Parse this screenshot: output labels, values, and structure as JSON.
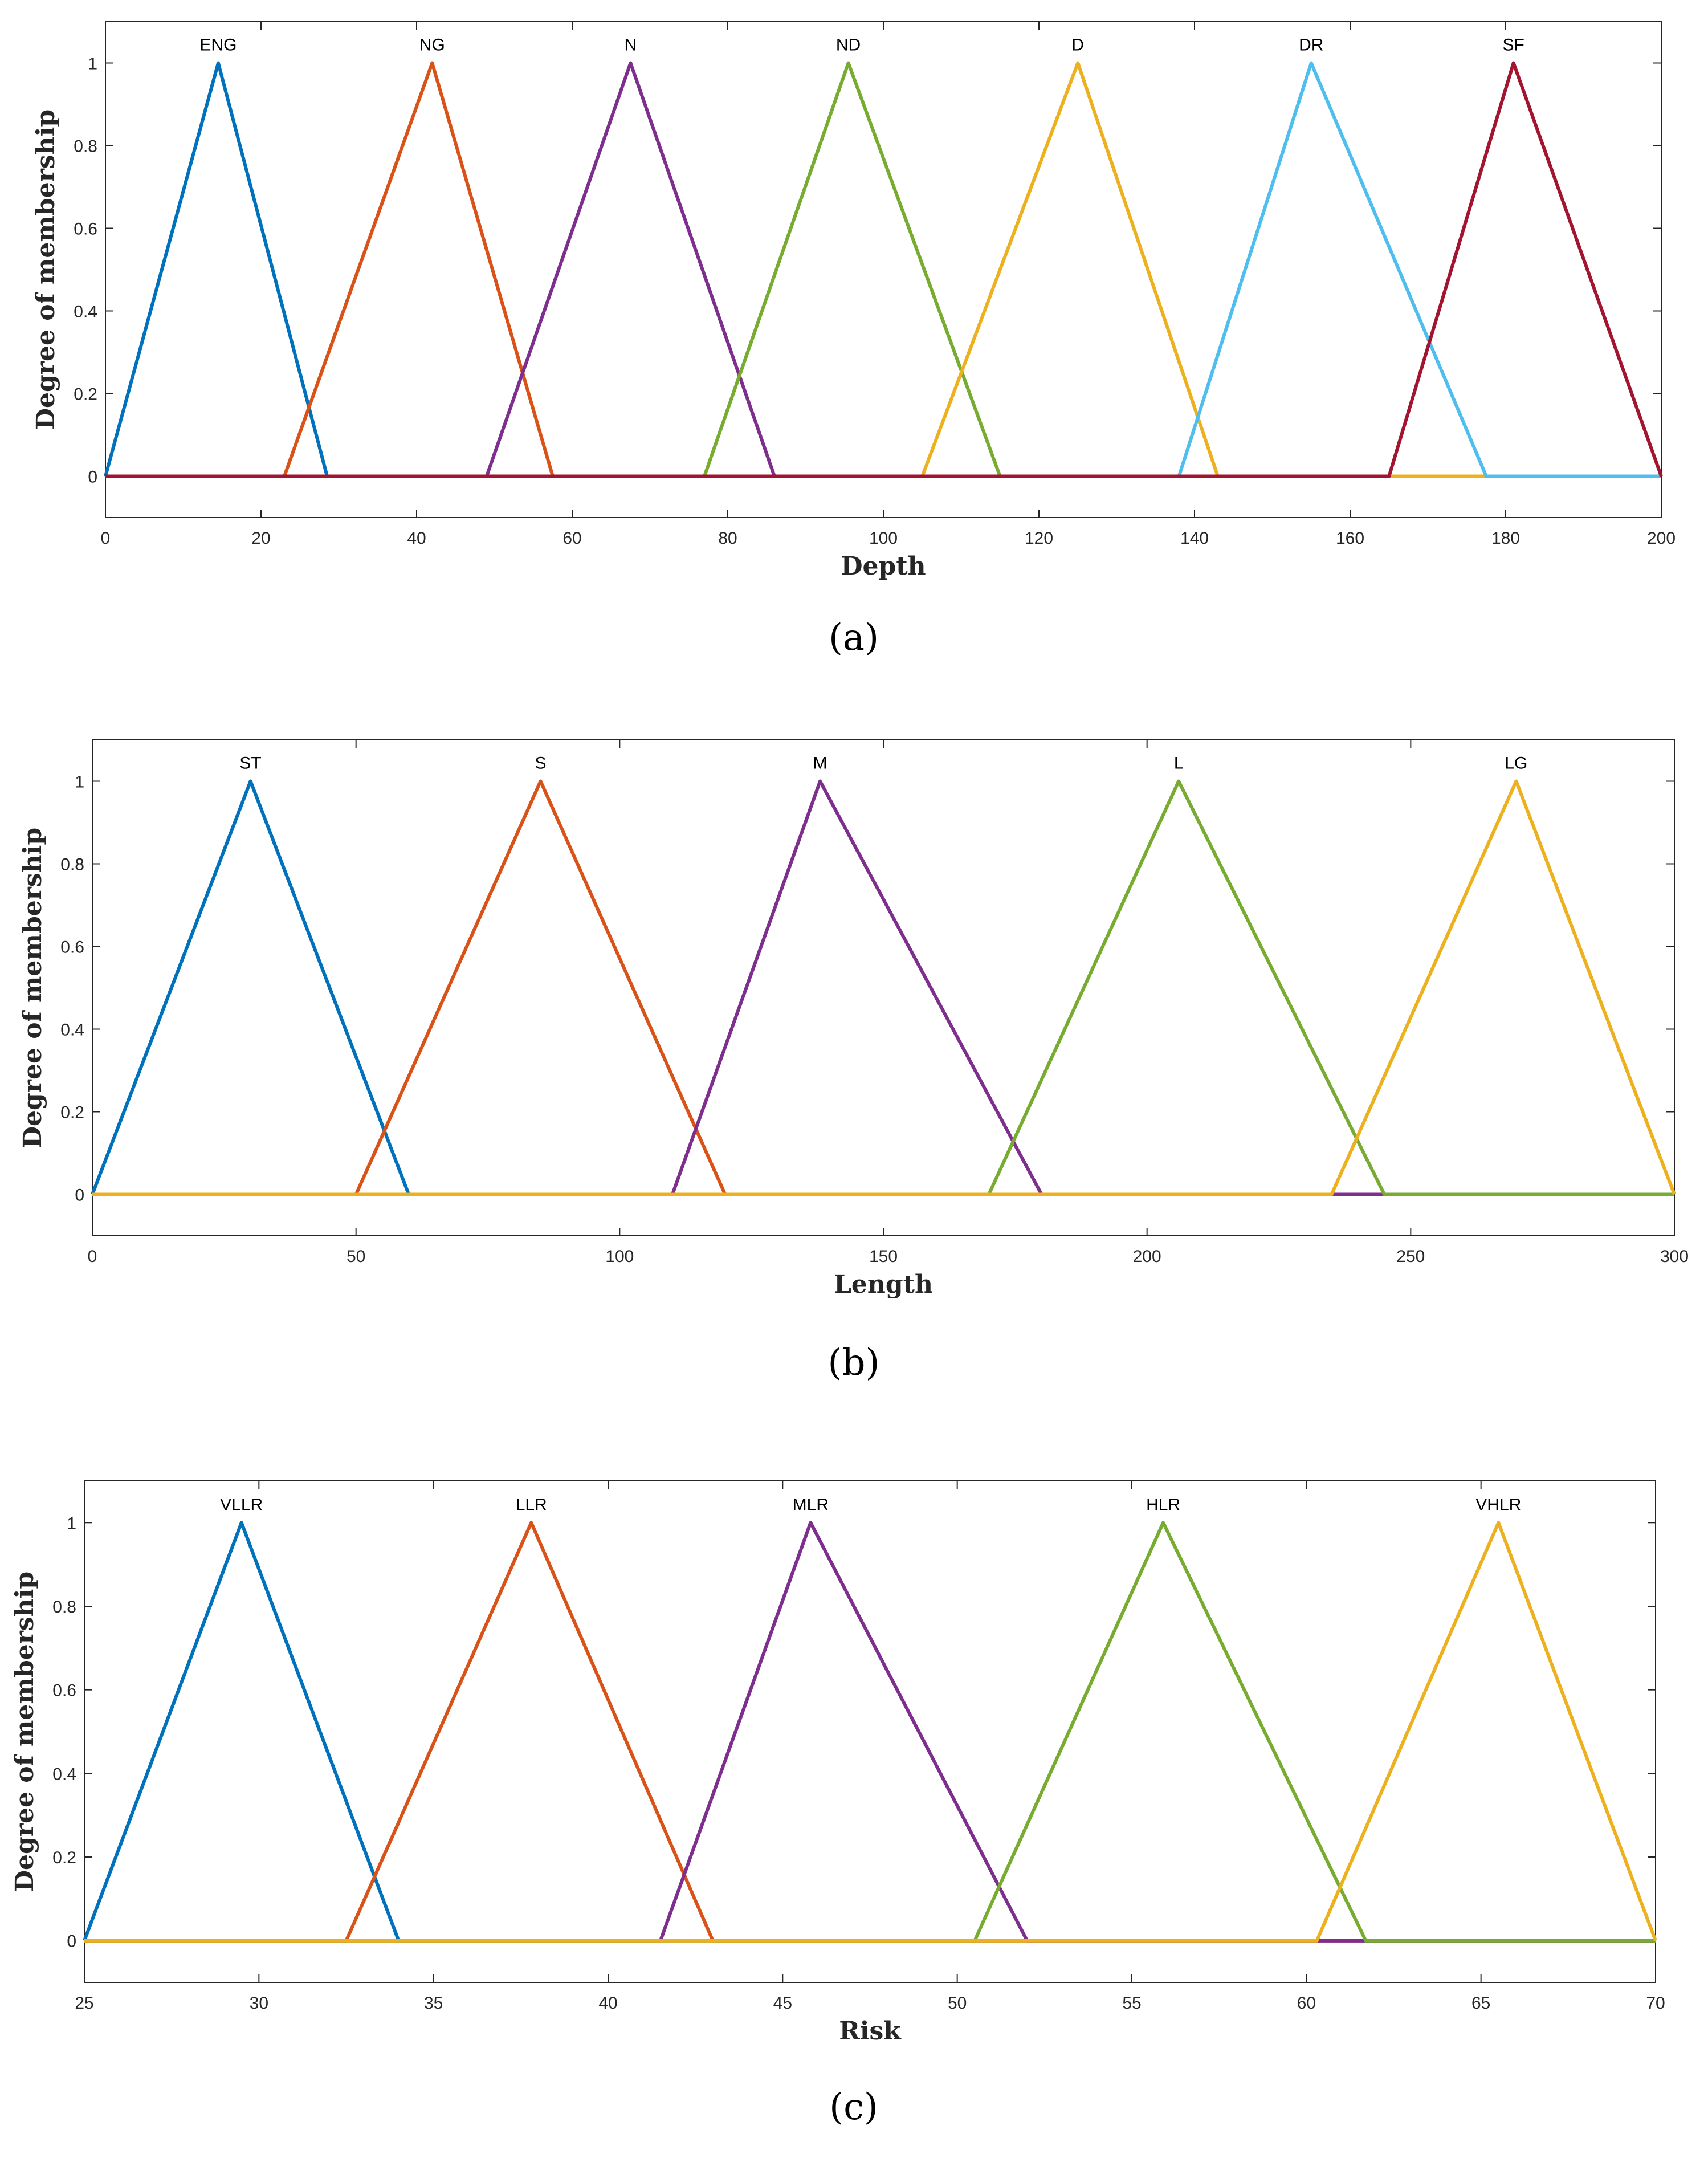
{
  "figure": {
    "panels": [
      "(a)",
      "(b)",
      "(c)"
    ]
  },
  "chart_data": [
    {
      "type": "line",
      "caption": "(a)",
      "title": "",
      "xlabel": "Depth",
      "ylabel": "Degree of membership",
      "xlim": [
        0,
        200
      ],
      "ylim": [
        -0.1,
        1.1
      ],
      "xticks": [
        0,
        20,
        40,
        60,
        80,
        100,
        120,
        140,
        160,
        180,
        200
      ],
      "yticks": [
        0,
        0.2,
        0.4,
        0.6,
        0.8,
        1
      ],
      "grid": false,
      "series": [
        {
          "name": "ENG",
          "color": "#0072BD",
          "points": [
            [
              0,
              0
            ],
            [
              14.5,
              1
            ],
            [
              28.5,
              0
            ]
          ]
        },
        {
          "name": "NG",
          "color": "#D95319",
          "points": [
            [
              23,
              0
            ],
            [
              42,
              1
            ],
            [
              57.5,
              0
            ]
          ]
        },
        {
          "name": "N",
          "color": "#7E2F8E",
          "points": [
            [
              49,
              0
            ],
            [
              67.5,
              1
            ],
            [
              86,
              0
            ]
          ]
        },
        {
          "name": "ND",
          "color": "#77AC30",
          "points": [
            [
              77,
              0
            ],
            [
              95.5,
              1
            ],
            [
              115,
              0
            ]
          ]
        },
        {
          "name": "D",
          "color": "#EDB120",
          "points": [
            [
              105,
              0
            ],
            [
              125,
              1
            ],
            [
              143,
              0
            ]
          ]
        },
        {
          "name": "DR",
          "color": "#4DBEEE",
          "points": [
            [
              138,
              0
            ],
            [
              155,
              1
            ],
            [
              177.5,
              0
            ]
          ]
        },
        {
          "name": "SF",
          "color": "#A2142F",
          "points": [
            [
              165,
              0
            ],
            [
              181,
              1
            ],
            [
              200,
              0
            ]
          ]
        }
      ]
    },
    {
      "type": "line",
      "caption": "(b)",
      "title": "",
      "xlabel": "Length",
      "ylabel": "Degree of membership",
      "xlim": [
        0,
        300
      ],
      "ylim": [
        -0.1,
        1.1
      ],
      "xticks": [
        0,
        50,
        100,
        150,
        200,
        250,
        300
      ],
      "yticks": [
        0,
        0.2,
        0.4,
        0.6,
        0.8,
        1
      ],
      "grid": false,
      "series": [
        {
          "name": "ST",
          "color": "#0072BD",
          "points": [
            [
              0,
              0
            ],
            [
              30,
              1
            ],
            [
              60,
              0
            ]
          ]
        },
        {
          "name": "S",
          "color": "#D95319",
          "points": [
            [
              50,
              0
            ],
            [
              85,
              1
            ],
            [
              120,
              0
            ]
          ]
        },
        {
          "name": "M",
          "color": "#7E2F8E",
          "points": [
            [
              110,
              0
            ],
            [
              138,
              1
            ],
            [
              180,
              0
            ]
          ]
        },
        {
          "name": "L",
          "color": "#77AC30",
          "points": [
            [
              170,
              0
            ],
            [
              206,
              1
            ],
            [
              245,
              0
            ]
          ]
        },
        {
          "name": "LG",
          "color": "#EDB120",
          "points": [
            [
              235,
              0
            ],
            [
              270,
              1
            ],
            [
              300,
              0
            ]
          ]
        }
      ]
    },
    {
      "type": "line",
      "caption": "(c)",
      "title": "",
      "xlabel": "Risk",
      "ylabel": "Degree of membership",
      "xlim": [
        25,
        70
      ],
      "ylim": [
        -0.1,
        1.1
      ],
      "xticks": [
        25,
        30,
        35,
        40,
        45,
        50,
        55,
        60,
        65,
        70
      ],
      "yticks": [
        0,
        0.2,
        0.4,
        0.6,
        0.8,
        1
      ],
      "grid": false,
      "series": [
        {
          "name": "VLLR",
          "color": "#0072BD",
          "points": [
            [
              25,
              0
            ],
            [
              29.5,
              1
            ],
            [
              34,
              0
            ]
          ]
        },
        {
          "name": "LLR",
          "color": "#D95319",
          "points": [
            [
              32.5,
              0
            ],
            [
              37.8,
              1
            ],
            [
              43,
              0
            ]
          ]
        },
        {
          "name": "MLR",
          "color": "#7E2F8E",
          "points": [
            [
              41.5,
              0
            ],
            [
              45.8,
              1
            ],
            [
              52,
              0
            ]
          ]
        },
        {
          "name": "HLR",
          "color": "#77AC30",
          "points": [
            [
              50.5,
              0
            ],
            [
              55.9,
              1
            ],
            [
              61.7,
              0
            ]
          ]
        },
        {
          "name": "VHLR",
          "color": "#EDB120",
          "points": [
            [
              60.3,
              0
            ],
            [
              65.5,
              1
            ],
            [
              70,
              0
            ]
          ]
        }
      ]
    }
  ]
}
